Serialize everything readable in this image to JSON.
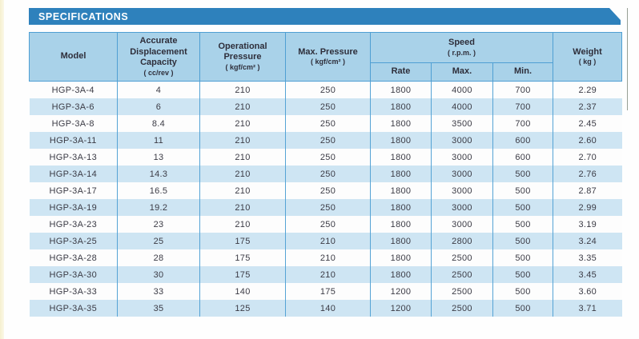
{
  "page": {
    "banner_title": "SPECIFICATIONS"
  },
  "table": {
    "header": {
      "model": "Model",
      "capacity": {
        "title": "Accurate Displacement Capacity",
        "unit": "( cc/rev )"
      },
      "operational_pressure": {
        "title": "Operational Pressure",
        "unit": "( kgf/cm² )"
      },
      "max_pressure": {
        "title": "Max. Pressure",
        "unit": "( kgf/cm² )"
      },
      "speed": {
        "title": "Speed",
        "unit": "( r.p.m. )",
        "sub": {
          "rate": "Rate",
          "max": "Max.",
          "min": "Min."
        }
      },
      "weight": {
        "title": "Weight",
        "unit": "( kg )"
      }
    },
    "rows": [
      [
        "HGP-3A-4",
        "4",
        "210",
        "250",
        "1800",
        "4000",
        "700",
        "2.29"
      ],
      [
        "HGP-3A-6",
        "6",
        "210",
        "250",
        "1800",
        "4000",
        "700",
        "2.37"
      ],
      [
        "HGP-3A-8",
        "8.4",
        "210",
        "250",
        "1800",
        "3500",
        "700",
        "2.45"
      ],
      [
        "HGP-3A-11",
        "11",
        "210",
        "250",
        "1800",
        "3000",
        "600",
        "2.60"
      ],
      [
        "HGP-3A-13",
        "13",
        "210",
        "250",
        "1800",
        "3000",
        "600",
        "2.70"
      ],
      [
        "HGP-3A-14",
        "14.3",
        "210",
        "250",
        "1800",
        "3000",
        "500",
        "2.76"
      ],
      [
        "HGP-3A-17",
        "16.5",
        "210",
        "250",
        "1800",
        "3000",
        "500",
        "2.87"
      ],
      [
        "HGP-3A-19",
        "19.2",
        "210",
        "250",
        "1800",
        "3000",
        "500",
        "2.99"
      ],
      [
        "HGP-3A-23",
        "23",
        "210",
        "250",
        "1800",
        "3000",
        "500",
        "3.19"
      ],
      [
        "HGP-3A-25",
        "25",
        "175",
        "210",
        "1800",
        "2800",
        "500",
        "3.24"
      ],
      [
        "HGP-3A-28",
        "28",
        "175",
        "210",
        "1800",
        "2500",
        "500",
        "3.35"
      ],
      [
        "HGP-3A-30",
        "30",
        "175",
        "210",
        "1800",
        "2500",
        "500",
        "3.45"
      ],
      [
        "HGP-3A-33",
        "33",
        "140",
        "175",
        "1200",
        "2500",
        "500",
        "3.60"
      ],
      [
        "HGP-3A-35",
        "35",
        "125",
        "140",
        "1200",
        "2500",
        "500",
        "3.71"
      ]
    ],
    "colors": {
      "banner_blue": "#2e81bc",
      "header_blue": "#a9d2e9",
      "stripe_blue": "#cee5f3",
      "border_blue": "#4f9fd3",
      "text": "#3b3b45"
    }
  }
}
